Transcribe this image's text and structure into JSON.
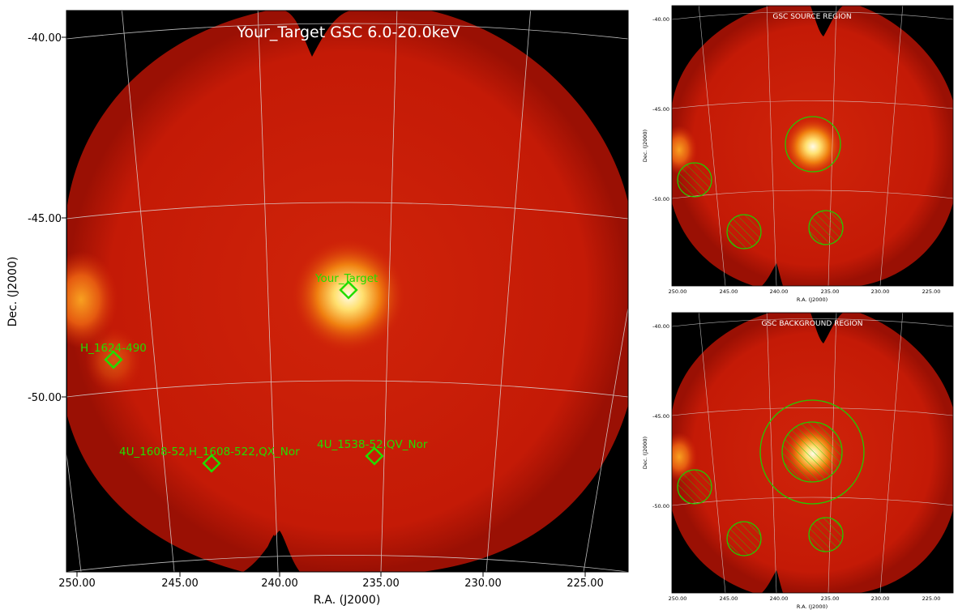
{
  "main": {
    "title": "Your_Target GSC 6.0-20.0keV",
    "xlabel": "R.A. (J2000)",
    "ylabel": "Dec. (J2000)",
    "x_ticks": [
      "250.00",
      "245.00",
      "240.00",
      "235.00",
      "230.00",
      "225.00"
    ],
    "y_ticks": [
      "-40.00",
      "-45.00",
      "-50.00"
    ],
    "sources": [
      {
        "label": "Your_Target"
      },
      {
        "label": "H_1624-490"
      },
      {
        "label": "4U_1608-52,H_1608-522,QX_Nor"
      },
      {
        "label": "4U_1538-52,QV_Nor"
      }
    ]
  },
  "source_panel": {
    "title": "GSC SOURCE REGION",
    "xlabel": "R.A. (J2000)",
    "ylabel": "Dec. (J2000)",
    "x_ticks": [
      "250.00",
      "245.00",
      "240.00",
      "235.00",
      "230.00",
      "225.00"
    ],
    "y_ticks": [
      "-40.00",
      "-45.00",
      "-50.00"
    ]
  },
  "background_panel": {
    "title": "GSC BACKGROUND REGION",
    "xlabel": "R.A. (J2000)",
    "ylabel": "Dec. (J2000)",
    "x_ticks": [
      "250.00",
      "245.00",
      "240.00",
      "235.00",
      "230.00",
      "225.00"
    ],
    "y_ticks": [
      "-40.00",
      "-45.00",
      "-50.00"
    ]
  },
  "colors": {
    "marker": "#22dd00",
    "region": "#22cc00",
    "title": "#ffffff",
    "background": "#000000",
    "sky": "#c81a06"
  }
}
